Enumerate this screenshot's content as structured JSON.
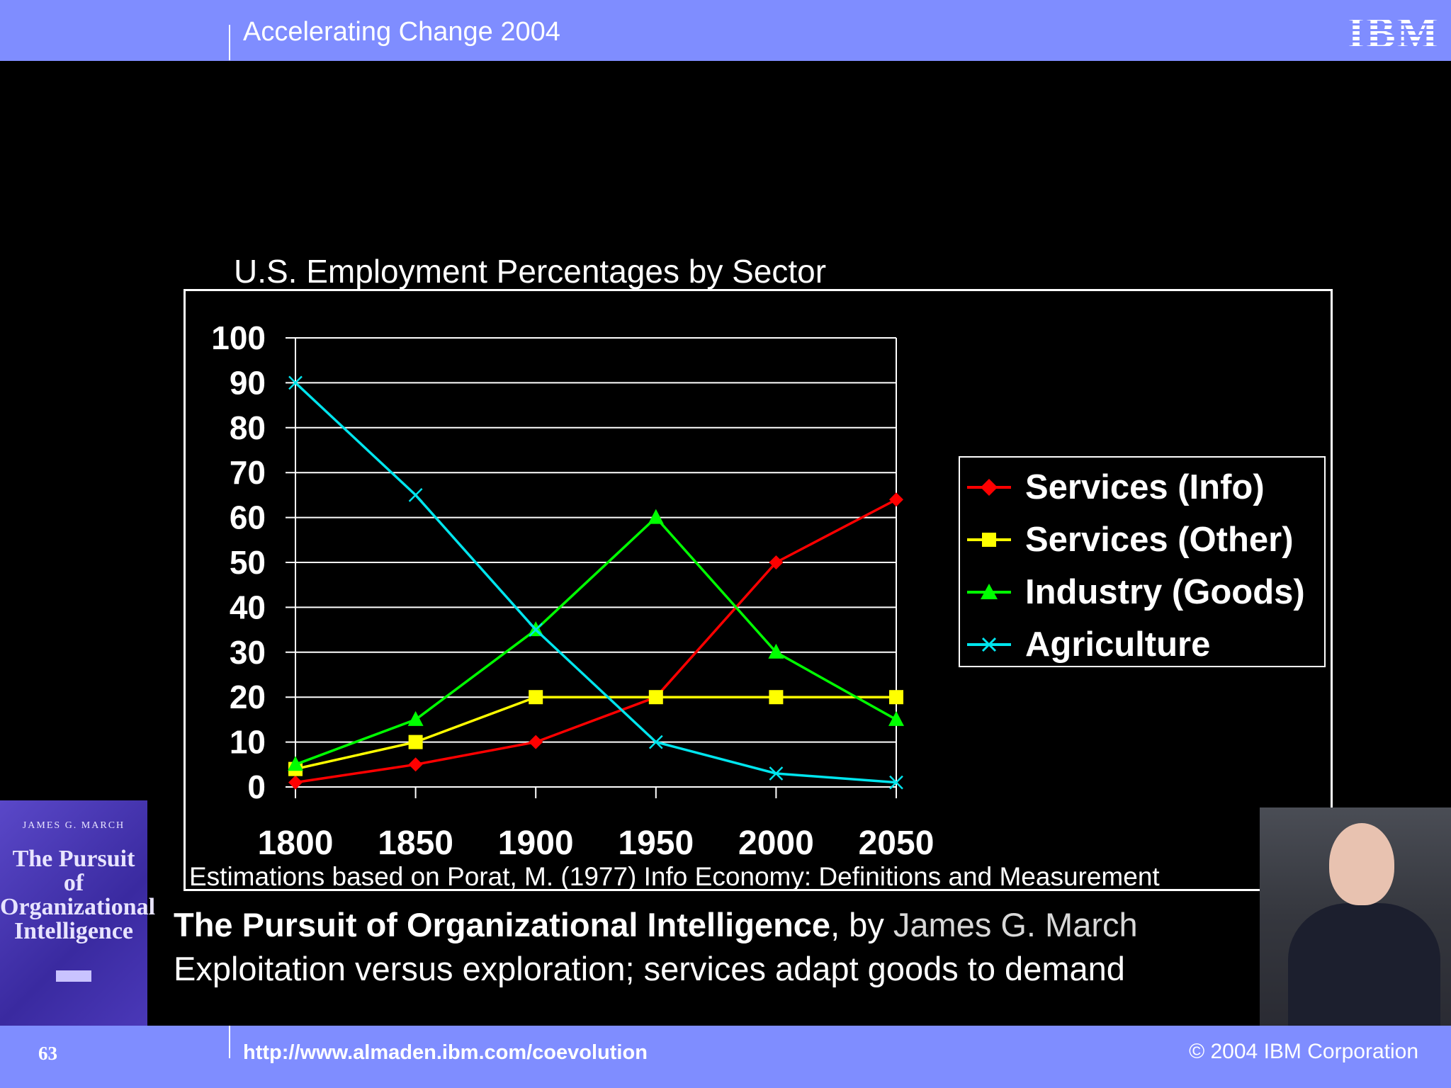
{
  "header": {
    "title": "Accelerating Change 2004",
    "logo": "IBM"
  },
  "chart_data": {
    "type": "line",
    "title": "U.S. Employment Percentages by Sector",
    "x": [
      1800,
      1850,
      1900,
      1950,
      2000,
      2050
    ],
    "ylim": [
      0,
      100
    ],
    "yticks": [
      0,
      10,
      20,
      30,
      40,
      50,
      60,
      70,
      80,
      90,
      100
    ],
    "grid": true,
    "legend_position": "right",
    "series": [
      {
        "name": "Services (Info)",
        "values": [
          1,
          5,
          10,
          20,
          50,
          64
        ],
        "color": "#ff0000",
        "marker": "diamond"
      },
      {
        "name": "Services (Other)",
        "values": [
          4,
          10,
          20,
          20,
          20,
          20
        ],
        "color": "#ffff00",
        "marker": "square"
      },
      {
        "name": "Industry (Goods)",
        "values": [
          5,
          15,
          35,
          60,
          30,
          15
        ],
        "color": "#00ff00",
        "marker": "triangle"
      },
      {
        "name": "Agriculture",
        "values": [
          90,
          65,
          35,
          10,
          3,
          1
        ],
        "color": "#00e5ee",
        "marker": "x"
      }
    ]
  },
  "note": "Estimations based on Porat, M. (1977) Info Economy: Definitions and Measurement",
  "book": {
    "author": "JAMES G. MARCH",
    "title": "The Pursuit of Organizational Intelligence"
  },
  "caption": {
    "book_title": "The Pursuit of Organizational Intelligence",
    "by": ", by ",
    "author": "James G. March",
    "line2": "Exploitation versus exploration; services adapt goods to demand"
  },
  "footer": {
    "page": "63",
    "url": "http://www.almaden.ibm.com/coevolution",
    "copyright": "© 2004 IBM Corporation"
  }
}
